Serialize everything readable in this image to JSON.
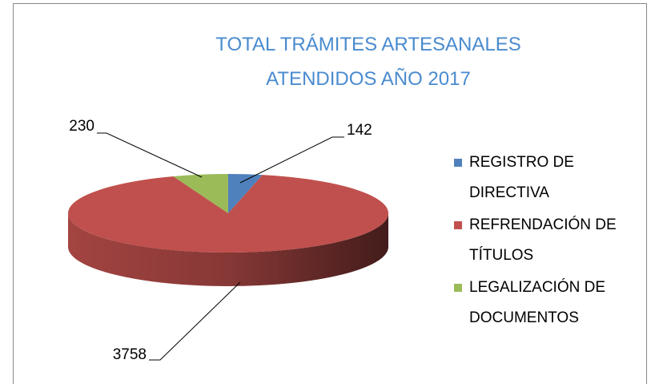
{
  "chart_data": {
    "type": "pie",
    "title": "TOTAL TRÁMITES ARTESANALES ATENDIDOS AÑO 2017",
    "categories": [
      "REGISTRO DE DIRECTIVA",
      "REFRENDACIÓN DE TÍTULOS",
      "LEGALIZACIÓN DE DOCUMENTOS"
    ],
    "values": [
      142,
      3758,
      230
    ],
    "colors": [
      "#4f81bd",
      "#c0504d",
      "#9bbb59"
    ],
    "legend": "right"
  }
}
